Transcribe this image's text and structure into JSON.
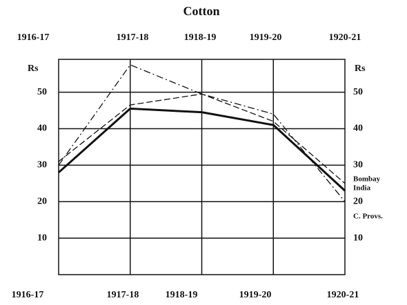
{
  "chart_data": {
    "type": "line",
    "title": "Cotton",
    "categories": [
      "1916-17",
      "1917-18",
      "1918-19",
      "1919-20",
      "1920-21"
    ],
    "y_label": "Rs",
    "y2_label": "Rs",
    "series": [
      {
        "name": "India",
        "color": "#111111",
        "style": "solid",
        "width": 3,
        "values": [
          28,
          45.5,
          44.5,
          41,
          23
        ]
      },
      {
        "name": "Bombay",
        "color": "#111111",
        "style": "dashed",
        "width": 1.3,
        "values": [
          31,
          46.5,
          49.5,
          42,
          25
        ]
      },
      {
        "name": "C. Provs.",
        "color": "#111111",
        "style": "dashdot",
        "width": 1.3,
        "values": [
          30,
          57.5,
          49.5,
          44,
          20
        ]
      }
    ],
    "ylim": [
      0,
      59
    ],
    "yticks": [
      10,
      20,
      30,
      40,
      50
    ],
    "y2lim": [
      0,
      59
    ],
    "y2ticks": [
      10,
      20,
      30,
      40,
      50
    ],
    "grid": true
  }
}
